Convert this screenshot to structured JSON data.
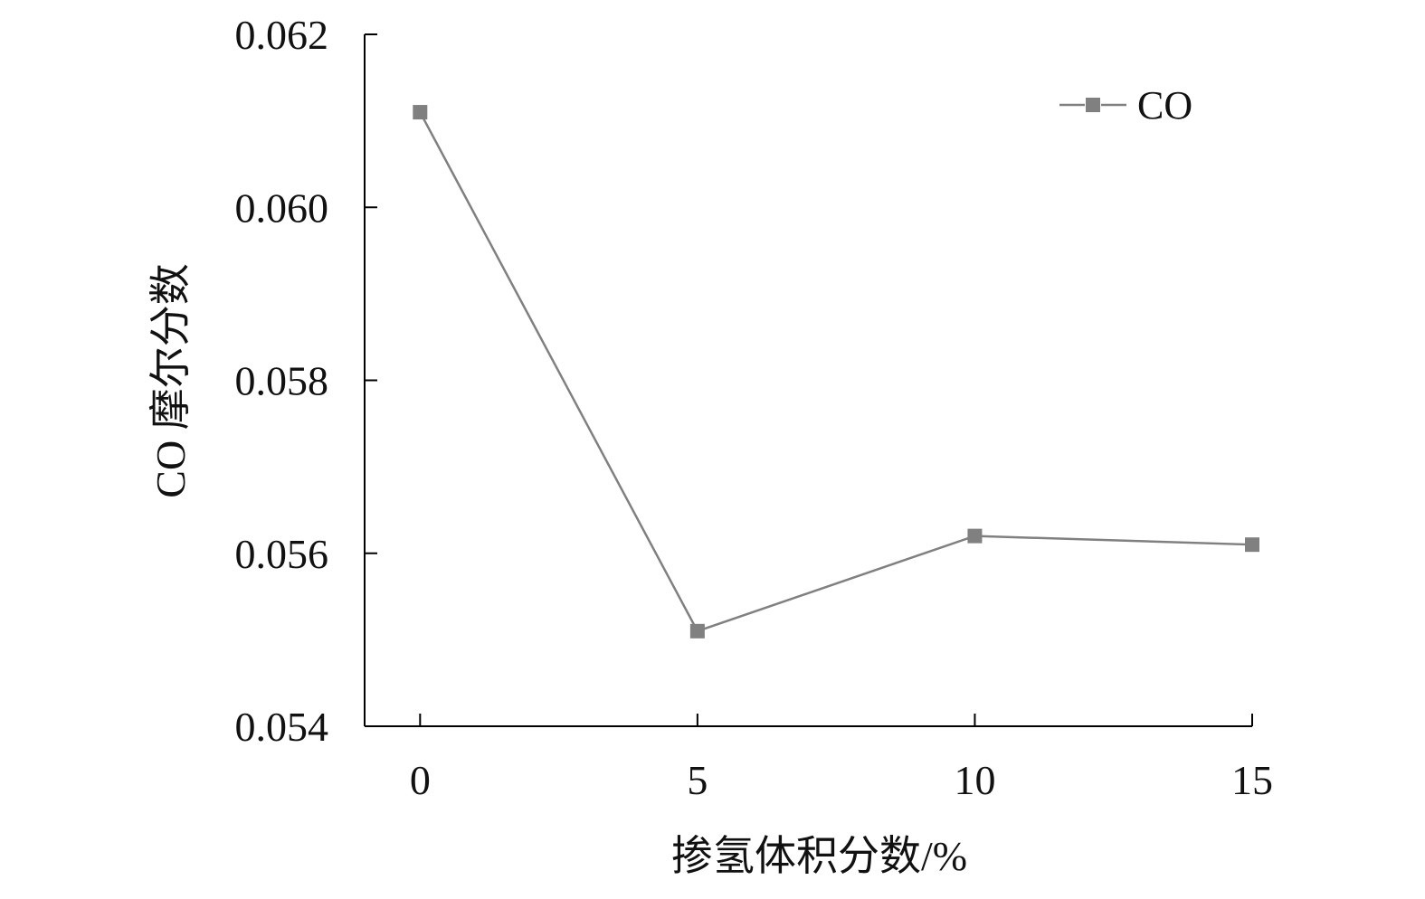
{
  "chart_data": {
    "type": "line",
    "title": "",
    "xlabel": "掺氢体积分数/%",
    "ylabel": "CO 摩尔分数",
    "x": [
      0,
      5,
      10,
      15
    ],
    "series": [
      {
        "name": "CO",
        "values": [
          0.0611,
          0.0551,
          0.0562,
          0.0561
        ],
        "color": "#808080",
        "marker": "square"
      }
    ],
    "xlim": [
      -1,
      15
    ],
    "ylim": [
      0.054,
      0.062
    ],
    "xticks": [
      "0",
      "5",
      "10",
      "15"
    ],
    "yticks": [
      "0.054",
      "0.056",
      "0.058",
      "0.060",
      "0.062"
    ],
    "grid": false,
    "legend_position": "top-right"
  }
}
